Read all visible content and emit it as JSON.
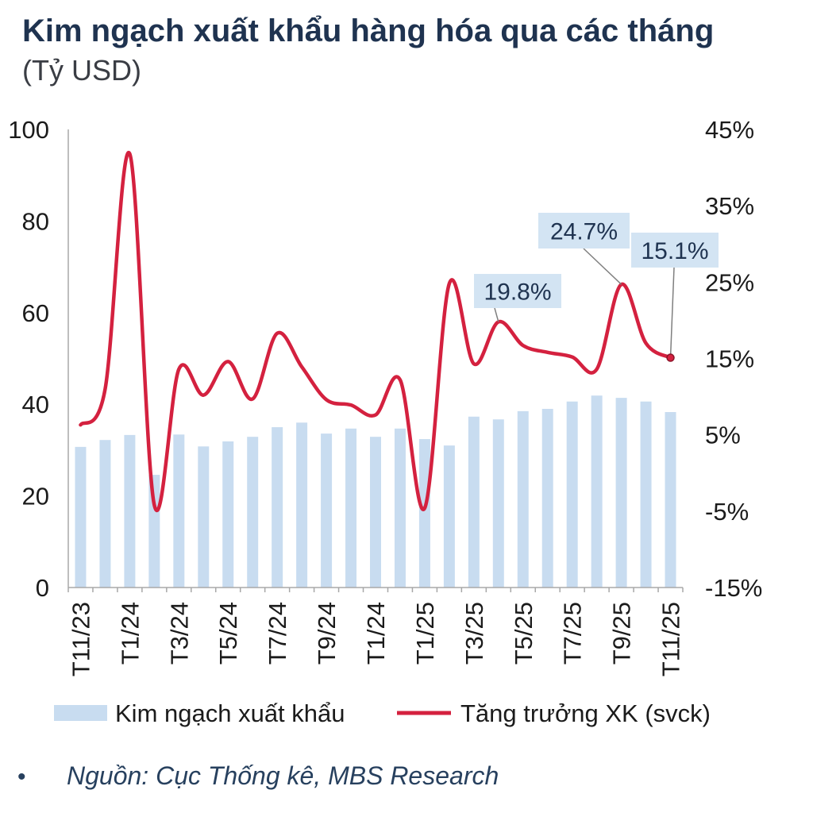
{
  "chart_data": {
    "type": "bar",
    "title": "Kim ngạch xuất khẩu hàng hóa qua các tháng",
    "subtitle": "(Tỷ USD)",
    "categories": [
      "T11/23",
      "",
      "T1/24",
      "",
      "T3/24",
      "",
      "T5/24",
      "",
      "T7/24",
      "",
      "T9/24",
      "",
      "T1/24",
      "",
      "T1/25",
      "",
      "T3/25",
      "",
      "T5/25",
      "",
      "T7/25",
      "",
      "T9/25",
      "",
      "T11/25"
    ],
    "series": [
      {
        "name": "Kim ngạch xuất khẩu",
        "type": "bar",
        "values": [
          30.7,
          32.2,
          33.3,
          24.6,
          33.4,
          30.8,
          31.9,
          32.9,
          35.0,
          36.0,
          33.6,
          34.7,
          32.9,
          34.7,
          32.4,
          31.0,
          37.3,
          36.7,
          38.5,
          39.0,
          40.6,
          41.9,
          41.4,
          40.6,
          38.3
        ]
      },
      {
        "name": "Tăng trưởng XK (svck)",
        "type": "line",
        "values": [
          6.3,
          11.0,
          41.8,
          -4.2,
          13.6,
          10.2,
          14.6,
          9.7,
          18.3,
          13.9,
          9.6,
          8.9,
          7.6,
          12.2,
          -4.6,
          24.8,
          14.3,
          19.8,
          16.7,
          15.8,
          15.2,
          13.6,
          24.7,
          17.0,
          15.1
        ]
      }
    ],
    "y_left": {
      "min": 0,
      "max": 100,
      "ticks": [
        0,
        20,
        40,
        60,
        80,
        100
      ],
      "tick_labels": [
        "0",
        "20",
        "40",
        "60",
        "80",
        "100"
      ]
    },
    "y_right": {
      "min": -15,
      "max": 45,
      "ticks": [
        -15,
        -5,
        5,
        15,
        25,
        35,
        45
      ],
      "tick_labels": [
        "-15%",
        "-5%",
        "5%",
        "15%",
        "25%",
        "35%",
        "45%"
      ]
    },
    "annotations": [
      {
        "index": 17,
        "label": "19.8%"
      },
      {
        "index": 22,
        "label": "24.7%"
      },
      {
        "index": 24,
        "label": "15.1%",
        "marker": true
      }
    ],
    "grid": false
  },
  "source": {
    "bullet": "•",
    "text": "Nguồn: Cục Thống kê, MBS Research"
  },
  "colors": {
    "bar": "#c8dcf0",
    "line": "#d4213f",
    "marker_stroke": "#8a1328",
    "annotation_fill": "#d3e4f3",
    "leader": "#7f7f7f"
  }
}
